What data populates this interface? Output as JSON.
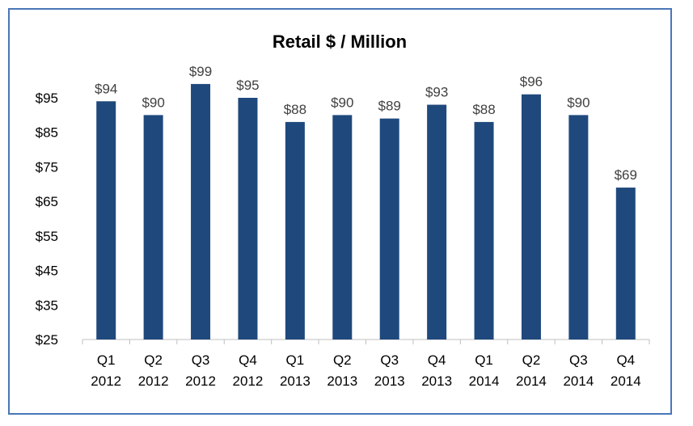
{
  "chart_data": {
    "type": "bar",
    "title": "Retail $ / Million",
    "categories": [
      [
        "Q1",
        "2012"
      ],
      [
        "Q2",
        "2012"
      ],
      [
        "Q3",
        "2012"
      ],
      [
        "Q4",
        "2012"
      ],
      [
        "Q1",
        "2013"
      ],
      [
        "Q2",
        "2013"
      ],
      [
        "Q3",
        "2013"
      ],
      [
        "Q4",
        "2013"
      ],
      [
        "Q1",
        "2014"
      ],
      [
        "Q2",
        "2014"
      ],
      [
        "Q3",
        "2014"
      ],
      [
        "Q4",
        "2014"
      ]
    ],
    "values": [
      94,
      90,
      99,
      95,
      88,
      90,
      89,
      93,
      88,
      96,
      90,
      69
    ],
    "data_labels": [
      "$94",
      "$90",
      "$99",
      "$95",
      "$88",
      "$90",
      "$89",
      "$93",
      "$88",
      "$96",
      "$90",
      "$69"
    ],
    "y_ticks": [
      25,
      35,
      45,
      55,
      65,
      75,
      85,
      95
    ],
    "y_tick_labels": [
      "$25",
      "$35",
      "$45",
      "$55",
      "$65",
      "$75",
      "$85",
      "$95"
    ],
    "ylim": [
      25,
      100
    ],
    "xlabel": "",
    "ylabel": "",
    "grid": false,
    "legend": "none",
    "bar_color": "#1f497d",
    "frame_color": "#4a76b8"
  }
}
